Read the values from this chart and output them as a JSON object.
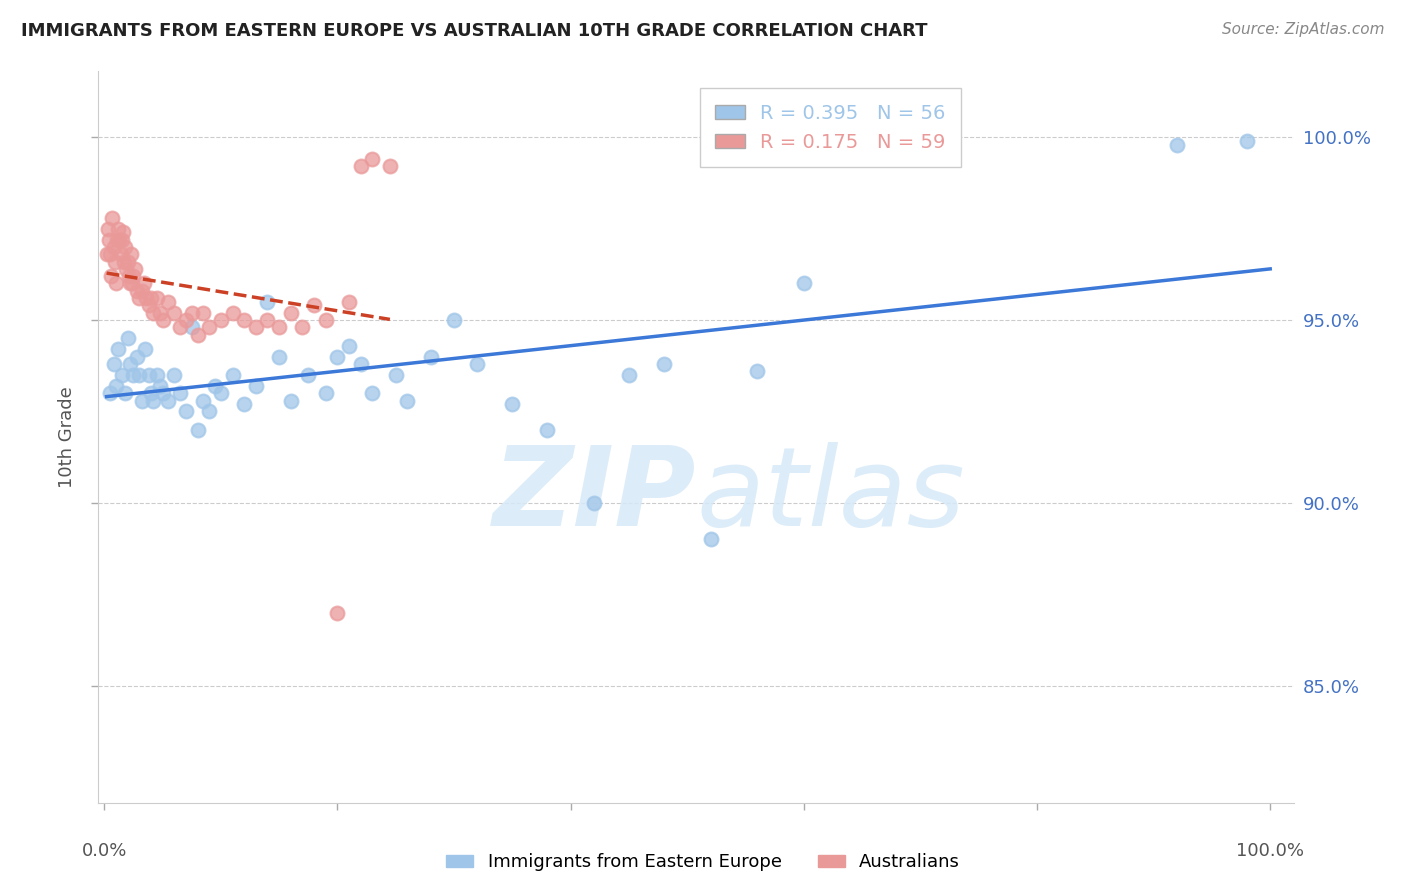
{
  "title": "IMMIGRANTS FROM EASTERN EUROPE VS AUSTRALIAN 10TH GRADE CORRELATION CHART",
  "source": "Source: ZipAtlas.com",
  "ylabel": "10th Grade",
  "ylim": [
    0.818,
    1.018
  ],
  "xlim": [
    -0.005,
    1.02
  ],
  "ytick_vals": [
    0.85,
    0.9,
    0.95,
    1.0
  ],
  "ytick_labels": [
    "85.0%",
    "90.0%",
    "95.0%",
    "100.0%"
  ],
  "xtick_vals": [
    0.0,
    0.2,
    0.4,
    0.6,
    0.8,
    1.0
  ],
  "legend_R1": "R = 0.395",
  "legend_N1": "N = 56",
  "legend_R2": "R = 0.175",
  "legend_N2": "N = 59",
  "blue_color": "#9fc5e8",
  "pink_color": "#ea9999",
  "blue_line_color": "#3c78d8",
  "pink_line_color": "#cc4125",
  "watermark_color": "#d6e9f8",
  "blue_x": [
    0.005,
    0.008,
    0.01,
    0.012,
    0.015,
    0.018,
    0.02,
    0.022,
    0.025,
    0.028,
    0.03,
    0.032,
    0.035,
    0.038,
    0.04,
    0.042,
    0.045,
    0.048,
    0.05,
    0.055,
    0.06,
    0.065,
    0.07,
    0.075,
    0.08,
    0.085,
    0.09,
    0.095,
    0.1,
    0.11,
    0.12,
    0.13,
    0.14,
    0.15,
    0.16,
    0.175,
    0.19,
    0.2,
    0.21,
    0.22,
    0.23,
    0.25,
    0.26,
    0.28,
    0.3,
    0.32,
    0.35,
    0.38,
    0.42,
    0.45,
    0.48,
    0.52,
    0.56,
    0.6,
    0.92,
    0.98
  ],
  "blue_y": [
    0.93,
    0.938,
    0.932,
    0.942,
    0.935,
    0.93,
    0.945,
    0.938,
    0.935,
    0.94,
    0.935,
    0.928,
    0.942,
    0.935,
    0.93,
    0.928,
    0.935,
    0.932,
    0.93,
    0.928,
    0.935,
    0.93,
    0.925,
    0.948,
    0.92,
    0.928,
    0.925,
    0.932,
    0.93,
    0.935,
    0.927,
    0.932,
    0.955,
    0.94,
    0.928,
    0.935,
    0.93,
    0.94,
    0.943,
    0.938,
    0.93,
    0.935,
    0.928,
    0.94,
    0.95,
    0.938,
    0.927,
    0.92,
    0.9,
    0.935,
    0.938,
    0.89,
    0.936,
    0.96,
    0.998,
    0.999
  ],
  "pink_x": [
    0.002,
    0.003,
    0.004,
    0.005,
    0.006,
    0.007,
    0.008,
    0.009,
    0.01,
    0.011,
    0.012,
    0.013,
    0.014,
    0.015,
    0.016,
    0.017,
    0.018,
    0.019,
    0.02,
    0.021,
    0.022,
    0.023,
    0.024,
    0.025,
    0.026,
    0.028,
    0.03,
    0.032,
    0.034,
    0.036,
    0.038,
    0.04,
    0.042,
    0.045,
    0.048,
    0.05,
    0.055,
    0.06,
    0.065,
    0.07,
    0.075,
    0.08,
    0.085,
    0.09,
    0.1,
    0.11,
    0.12,
    0.13,
    0.14,
    0.15,
    0.16,
    0.17,
    0.18,
    0.19,
    0.2,
    0.21,
    0.22,
    0.23,
    0.245
  ],
  "pink_y": [
    0.968,
    0.975,
    0.972,
    0.968,
    0.962,
    0.978,
    0.97,
    0.966,
    0.96,
    0.972,
    0.975,
    0.972,
    0.968,
    0.972,
    0.974,
    0.966,
    0.97,
    0.964,
    0.966,
    0.962,
    0.96,
    0.968,
    0.96,
    0.962,
    0.964,
    0.958,
    0.956,
    0.958,
    0.96,
    0.956,
    0.954,
    0.956,
    0.952,
    0.956,
    0.952,
    0.95,
    0.955,
    0.952,
    0.948,
    0.95,
    0.952,
    0.946,
    0.952,
    0.948,
    0.95,
    0.952,
    0.95,
    0.948,
    0.95,
    0.948,
    0.952,
    0.948,
    0.954,
    0.95,
    0.87,
    0.955,
    0.992,
    0.994,
    0.992
  ]
}
